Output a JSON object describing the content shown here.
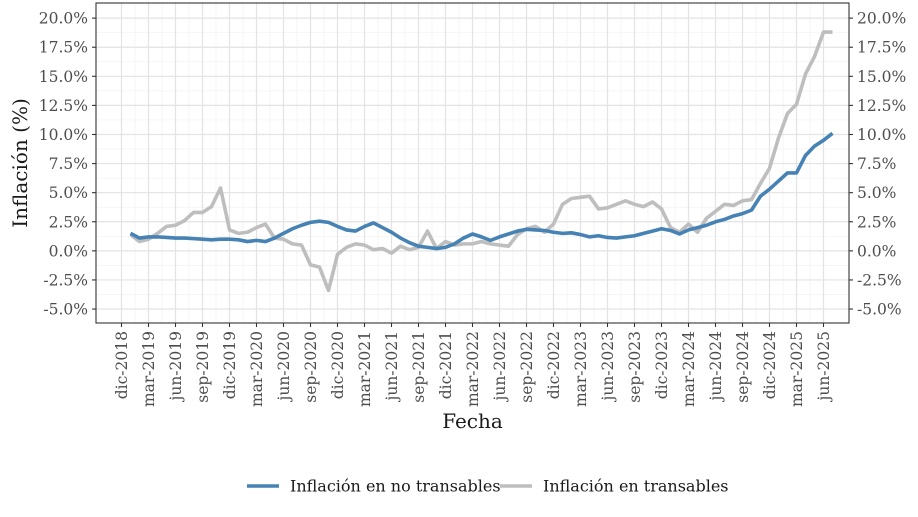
{
  "chart_data": {
    "type": "line",
    "xlabel": "Fecha",
    "ylabel": "Inflación (%)",
    "ylim": [
      -6.2,
      21.3
    ],
    "y_ticks": [
      -5.0,
      -2.5,
      0.0,
      2.5,
      5.0,
      7.5,
      10.0,
      12.5,
      15.0,
      17.5,
      20.0
    ],
    "y_tick_labels": [
      "-5.0%",
      "-2.5%",
      "0.0%",
      "2.5%",
      "5.0%",
      "7.5%",
      "10.0%",
      "12.5%",
      "15.0%",
      "17.5%",
      "20.0%"
    ],
    "x_tick_labels": [
      "dic-2018",
      "mar-2019",
      "jun-2019",
      "sep-2019",
      "dic-2019",
      "mar-2020",
      "jun-2020",
      "sep-2020",
      "dic-2020",
      "mar-2021",
      "jun-2021",
      "sep-2021",
      "dic-2021",
      "mar-2022",
      "jun-2022",
      "sep-2022",
      "dic-2022",
      "mar-2023",
      "jun-2023",
      "sep-2023",
      "dic-2023",
      "mar-2024",
      "jun-2024",
      "sep-2024",
      "dic-2024",
      "mar-2025",
      "jun-2025"
    ],
    "x_start": "2019-01",
    "grid": true,
    "secondary_y_axis": true,
    "legend_position": "bottom",
    "series": [
      {
        "name": "Inflación en no transables",
        "color": "#4682B4",
        "values": [
          1.5,
          1.1,
          1.2,
          1.2,
          1.15,
          1.1,
          1.1,
          1.05,
          1.0,
          0.95,
          1.0,
          1.0,
          0.95,
          0.8,
          0.9,
          0.8,
          1.1,
          1.5,
          1.9,
          2.2,
          2.45,
          2.55,
          2.45,
          2.1,
          1.8,
          1.7,
          2.1,
          2.4,
          2.0,
          1.6,
          1.1,
          0.7,
          0.4,
          0.3,
          0.2,
          0.3,
          0.6,
          1.1,
          1.45,
          1.2,
          0.9,
          1.2,
          1.45,
          1.7,
          1.85,
          1.8,
          1.75,
          1.6,
          1.5,
          1.55,
          1.4,
          1.2,
          1.3,
          1.15,
          1.1,
          1.2,
          1.3,
          1.5,
          1.7,
          1.9,
          1.75,
          1.45,
          1.8,
          2.0,
          2.2,
          2.5,
          2.7,
          3.0,
          3.2,
          3.5,
          4.7,
          5.3,
          6.0,
          6.7,
          6.7,
          8.2,
          9.0,
          9.5,
          10.1
        ]
      },
      {
        "name": "Inflación en transables",
        "color": "#BEBEBE",
        "values": [
          1.4,
          0.8,
          1.0,
          1.5,
          2.1,
          2.2,
          2.6,
          3.3,
          3.3,
          3.8,
          5.4,
          1.8,
          1.5,
          1.6,
          2.0,
          2.3,
          1.1,
          1.0,
          0.6,
          0.5,
          -1.2,
          -1.4,
          -3.4,
          -0.3,
          0.3,
          0.6,
          0.5,
          0.1,
          0.2,
          -0.2,
          0.4,
          0.1,
          0.3,
          1.7,
          0.2,
          0.8,
          0.5,
          0.6,
          0.6,
          0.8,
          0.6,
          0.5,
          0.4,
          1.4,
          1.9,
          2.1,
          1.6,
          2.3,
          4.0,
          4.5,
          4.6,
          4.7,
          3.6,
          3.7,
          4.0,
          4.3,
          4.0,
          3.8,
          4.2,
          3.6,
          2.0,
          1.6,
          2.3,
          1.6,
          2.8,
          3.4,
          4.0,
          3.9,
          4.3,
          4.4,
          5.8,
          7.1,
          9.7,
          11.8,
          12.6,
          15.2,
          16.7,
          18.8,
          18.8
        ]
      }
    ]
  }
}
